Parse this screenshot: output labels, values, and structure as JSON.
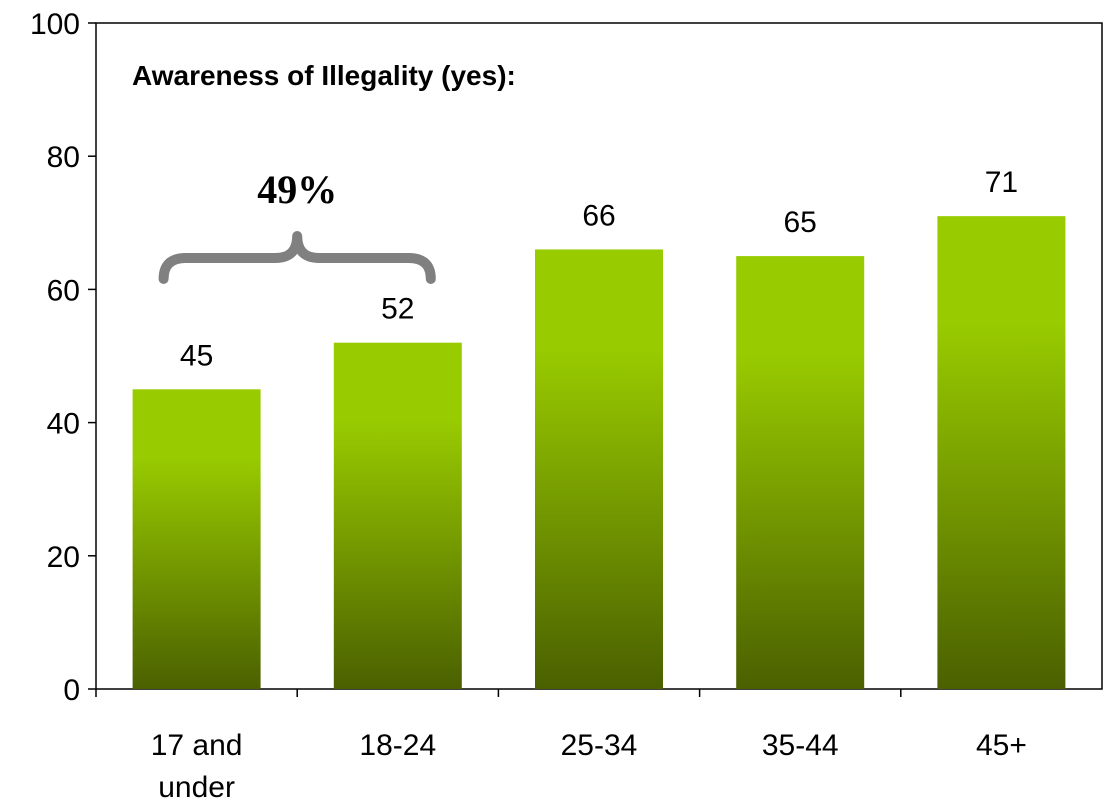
{
  "chart_data": {
    "type": "bar",
    "title": "Awareness of Illegality (yes):",
    "categories": [
      [
        "17 and",
        "under"
      ],
      [
        "18-24"
      ],
      [
        "25-34"
      ],
      [
        "35-44"
      ],
      [
        "45+"
      ]
    ],
    "values": [
      45,
      52,
      66,
      65,
      71
    ],
    "data_labels": [
      "45",
      "52",
      "66",
      "65",
      "71"
    ],
    "xlabel": "",
    "ylabel": "",
    "ylim": [
      0,
      100
    ],
    "yticks": [
      0,
      20,
      40,
      60,
      80,
      100
    ],
    "grid": false,
    "legend": "none",
    "bar_gradient": {
      "top": "#99CC00",
      "bottom": "#4B6000"
    },
    "annotation": {
      "text": "49%",
      "spans_categories": [
        0,
        1
      ],
      "brace_color": "#808080"
    }
  }
}
